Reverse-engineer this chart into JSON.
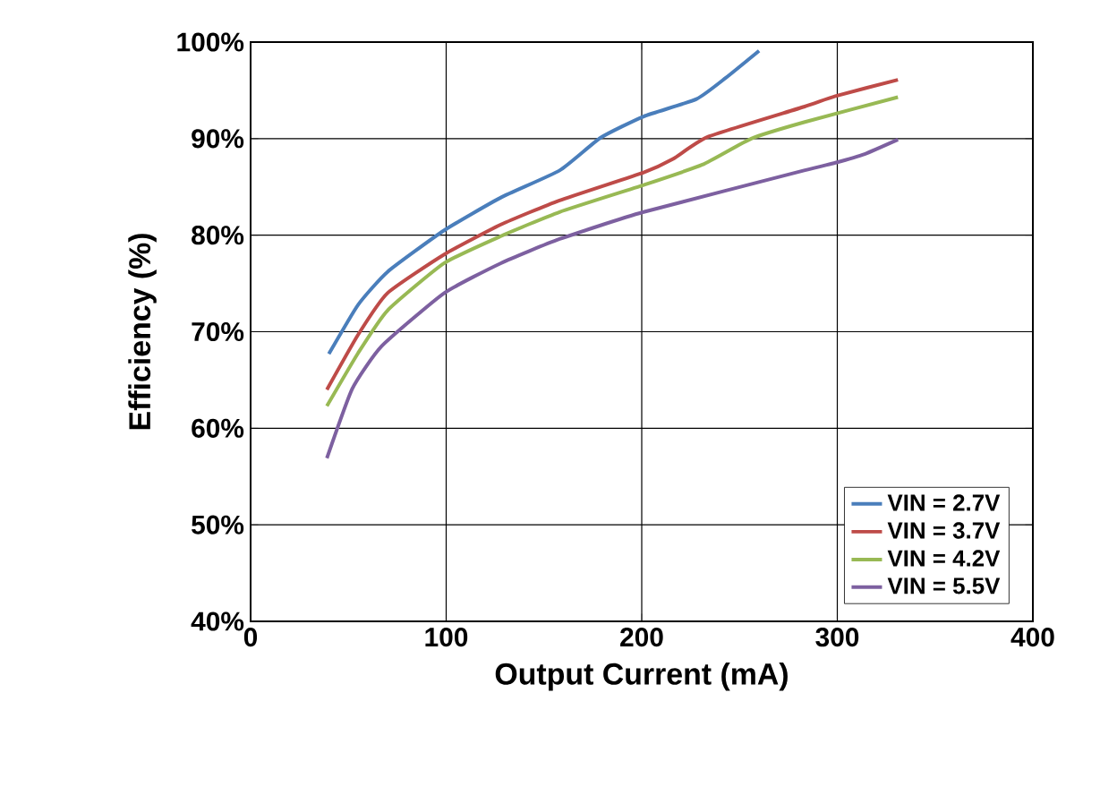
{
  "chart_data": {
    "type": "line",
    "xlabel": "Output Current (mA)",
    "ylabel": "Efficiency (%)",
    "xlim": [
      0,
      400
    ],
    "xticks": [
      0,
      100,
      200,
      300,
      400
    ],
    "ylim": [
      40,
      100
    ],
    "yticks": [
      {
        "value": 40,
        "label": "40%"
      },
      {
        "value": 50,
        "label": "50%"
      },
      {
        "value": 60,
        "label": "60%"
      },
      {
        "value": 70,
        "label": "70%"
      },
      {
        "value": 80,
        "label": "80%"
      },
      {
        "value": 90,
        "label": "90%"
      },
      {
        "value": 100,
        "label": "100%"
      }
    ],
    "grid": true,
    "legend": "bottom right",
    "marker": "none",
    "line_style": "solid",
    "series": [
      {
        "name": "VIN = 2.7V",
        "color": "#4a7ebb",
        "x": [
          40,
          55,
          70,
          99,
          128,
          158,
          179,
          201,
          228,
          243,
          260
        ],
        "values": [
          67.7,
          72.8,
          76.2,
          80.5,
          83.9,
          86.7,
          90.1,
          92.3,
          94.1,
          96.3,
          99.1
        ]
      },
      {
        "name": "VIN = 3.7V",
        "color": "#be4b48",
        "x": [
          39,
          55,
          70,
          99,
          128,
          158,
          201,
          216,
          234,
          283,
          299,
          331
        ],
        "values": [
          64.0,
          69.7,
          74.0,
          78.0,
          81.1,
          83.6,
          86.5,
          87.9,
          90.2,
          93.3,
          94.4,
          96.1
        ]
      },
      {
        "name": "VIN = 4.2V",
        "color": "#98b954",
        "x": [
          39,
          55,
          70,
          99,
          128,
          158,
          201,
          231,
          256,
          283,
          331
        ],
        "values": [
          62.3,
          67.8,
          72.2,
          77.1,
          79.9,
          82.4,
          85.2,
          87.3,
          90.0,
          91.7,
          94.3
        ]
      },
      {
        "name": "VIN = 5.5V",
        "color": "#7d60a0",
        "x": [
          39,
          52,
          67,
          99,
          128,
          158,
          201,
          283,
          299,
          314,
          331
        ],
        "values": [
          56.9,
          64.1,
          68.5,
          74.0,
          77.1,
          79.6,
          82.4,
          86.7,
          87.5,
          88.4,
          89.9
        ]
      }
    ]
  }
}
